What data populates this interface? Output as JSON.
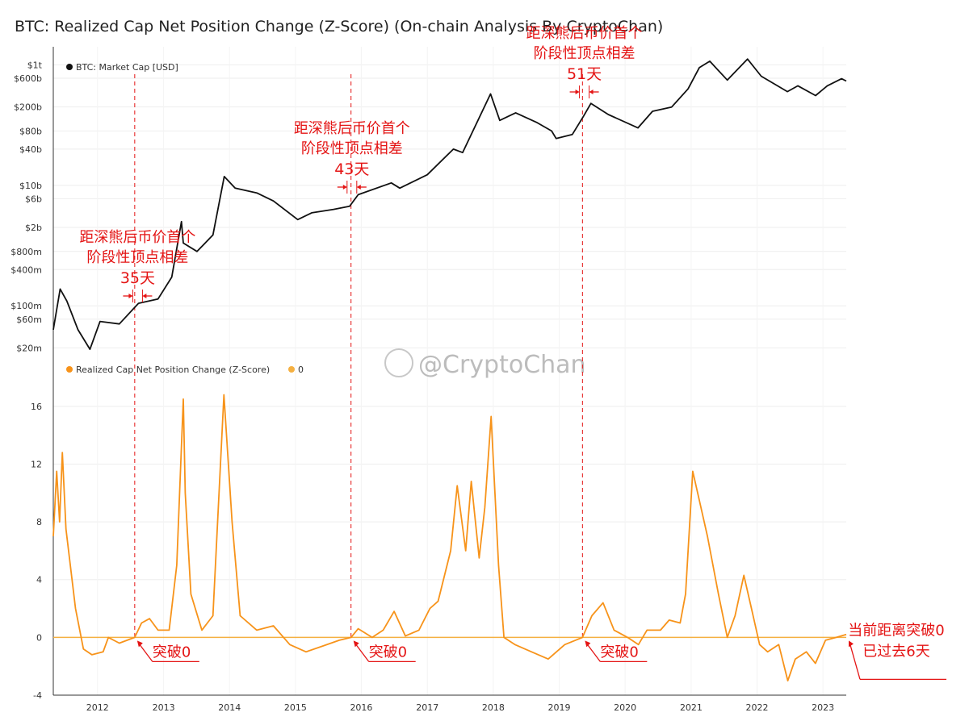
{
  "title": "BTC: Realized Cap Net Position Change (Z-Score) (On-chain Analysis By CryptoChan)",
  "watermark": "@CryptoChan",
  "colors": {
    "price_line": "#111111",
    "zscore_line": "#f7931a",
    "zero_line": "#f5b041",
    "annotation": "#e41414",
    "grid": "#eeeeee"
  },
  "chart_data": [
    {
      "type": "line",
      "scale": "log",
      "legend": "top-left",
      "y_ticks": [
        "$1t",
        "$600b",
        "$200b",
        "$80b",
        "$40b",
        "$10b",
        "$6b",
        "$2b",
        "$800m",
        "$400m",
        "$100m",
        "$60m",
        "$20m"
      ],
      "y_tick_values": [
        1000000000000,
        600000000000,
        200000000000,
        80000000000,
        40000000000,
        10000000000,
        6000000000,
        2000000000,
        800000000,
        400000000,
        100000000,
        60000000,
        20000000
      ],
      "series": [
        {
          "name": "BTC: Market Cap [USD]",
          "points": [
            [
              "2011-05-01",
              40000000
            ],
            [
              "2011-06-08",
              190000000
            ],
            [
              "2011-07-15",
              120000000
            ],
            [
              "2011-09-15",
              40000000
            ],
            [
              "2011-11-20",
              19000000
            ],
            [
              "2012-01-15",
              55000000
            ],
            [
              "2012-05-01",
              50000000
            ],
            [
              "2012-08-15",
              110000000
            ],
            [
              "2012-12-01",
              130000000
            ],
            [
              "2013-02-15",
              300000000
            ],
            [
              "2013-04-10",
              2500000000
            ],
            [
              "2013-04-20",
              1100000000
            ],
            [
              "2013-07-05",
              800000000
            ],
            [
              "2013-10-01",
              1500000000
            ],
            [
              "2013-12-03",
              14000000000
            ],
            [
              "2014-02-01",
              9000000000
            ],
            [
              "2014-06-01",
              7500000000
            ],
            [
              "2014-09-01",
              5500000000
            ],
            [
              "2015-01-14",
              2700000000
            ],
            [
              "2015-04-01",
              3500000000
            ],
            [
              "2015-08-01",
              4000000000
            ],
            [
              "2015-10-28",
              4500000000
            ],
            [
              "2015-12-15",
              7000000000
            ],
            [
              "2016-06-15",
              11000000000
            ],
            [
              "2016-08-01",
              9000000000
            ],
            [
              "2016-12-31",
              15000000000
            ],
            [
              "2017-05-25",
              40000000000
            ],
            [
              "2017-07-15",
              35000000000
            ],
            [
              "2017-12-17",
              330000000000
            ],
            [
              "2018-02-06",
              120000000000
            ],
            [
              "2018-05-05",
              160000000000
            ],
            [
              "2018-09-01",
              110000000000
            ],
            [
              "2018-11-20",
              80000000000
            ],
            [
              "2018-12-15",
              60000000000
            ],
            [
              "2019-03-15",
              70000000000
            ],
            [
              "2019-05-15",
              140000000000
            ],
            [
              "2019-06-26",
              230000000000
            ],
            [
              "2019-09-30",
              150000000000
            ],
            [
              "2020-03-12",
              90000000000
            ],
            [
              "2020-06-01",
              170000000000
            ],
            [
              "2020-09-15",
              200000000000
            ],
            [
              "2020-12-15",
              400000000000
            ],
            [
              "2021-02-15",
              900000000000
            ],
            [
              "2021-04-14",
              1150000000000
            ],
            [
              "2021-07-20",
              560000000000
            ],
            [
              "2021-11-09",
              1250000000000
            ],
            [
              "2022-01-24",
              650000000000
            ],
            [
              "2022-06-18",
              360000000000
            ],
            [
              "2022-08-15",
              450000000000
            ],
            [
              "2022-11-21",
              310000000000
            ],
            [
              "2023-01-25",
              450000000000
            ],
            [
              "2023-04-14",
              590000000000
            ],
            [
              "2023-05-10",
              540000000000
            ]
          ]
        }
      ]
    },
    {
      "type": "line",
      "legend": "top-left",
      "x_ticks": [
        "2012",
        "2013",
        "2014",
        "2015",
        "2016",
        "2017",
        "2018",
        "2019",
        "2020",
        "2021",
        "2022",
        "2023"
      ],
      "y_ticks": [
        "16",
        "12",
        "8",
        "4",
        "0",
        "-4"
      ],
      "ylim": [
        -4,
        16
      ],
      "series": [
        {
          "name": "Realized Cap Net Position Change (Z-Score)",
          "points": [
            [
              "2011-05-01",
              7.0
            ],
            [
              "2011-05-20",
              11.5
            ],
            [
              "2011-06-05",
              8.0
            ],
            [
              "2011-06-20",
              12.8
            ],
            [
              "2011-07-10",
              7.5
            ],
            [
              "2011-09-01",
              2.0
            ],
            [
              "2011-10-15",
              -0.8
            ],
            [
              "2011-12-01",
              -1.2
            ],
            [
              "2012-02-01",
              -1.0
            ],
            [
              "2012-03-01",
              0.0
            ],
            [
              "2012-05-01",
              -0.4
            ],
            [
              "2012-07-25",
              0.0
            ],
            [
              "2012-09-01",
              1.0
            ],
            [
              "2012-10-15",
              1.3
            ],
            [
              "2012-12-01",
              0.5
            ],
            [
              "2013-02-01",
              0.5
            ],
            [
              "2013-03-15",
              5.0
            ],
            [
              "2013-04-20",
              16.5
            ],
            [
              "2013-05-01",
              10.0
            ],
            [
              "2013-06-01",
              3.0
            ],
            [
              "2013-08-01",
              0.5
            ],
            [
              "2013-10-01",
              1.5
            ],
            [
              "2013-12-01",
              16.8
            ],
            [
              "2014-01-15",
              8.0
            ],
            [
              "2014-03-01",
              1.5
            ],
            [
              "2014-06-01",
              0.5
            ],
            [
              "2014-09-01",
              0.8
            ],
            [
              "2014-12-01",
              -0.5
            ],
            [
              "2015-03-01",
              -1.0
            ],
            [
              "2015-06-01",
              -0.6
            ],
            [
              "2015-09-01",
              -0.2
            ],
            [
              "2015-11-05",
              0.0
            ],
            [
              "2015-12-15",
              0.6
            ],
            [
              "2016-03-01",
              0.0
            ],
            [
              "2016-05-01",
              0.5
            ],
            [
              "2016-07-01",
              1.8
            ],
            [
              "2016-09-01",
              0.1
            ],
            [
              "2016-11-15",
              0.5
            ],
            [
              "2017-01-15",
              2.0
            ],
            [
              "2017-03-01",
              2.5
            ],
            [
              "2017-05-10",
              6.0
            ],
            [
              "2017-06-15",
              10.5
            ],
            [
              "2017-08-01",
              6.0
            ],
            [
              "2017-09-01",
              10.8
            ],
            [
              "2017-10-15",
              5.5
            ],
            [
              "2017-11-15",
              9.0
            ],
            [
              "2017-12-20",
              15.3
            ],
            [
              "2018-01-30",
              5.0
            ],
            [
              "2018-03-01",
              0.0
            ],
            [
              "2018-05-01",
              -0.5
            ],
            [
              "2018-08-01",
              -1.0
            ],
            [
              "2018-11-01",
              -1.5
            ],
            [
              "2019-02-01",
              -0.5
            ],
            [
              "2019-05-10",
              0.0
            ],
            [
              "2019-07-01",
              1.5
            ],
            [
              "2019-09-01",
              2.4
            ],
            [
              "2019-11-01",
              0.5
            ],
            [
              "2020-01-15",
              0.0
            ],
            [
              "2020-03-15",
              -0.5
            ],
            [
              "2020-05-01",
              0.5
            ],
            [
              "2020-07-15",
              0.5
            ],
            [
              "2020-09-01",
              1.2
            ],
            [
              "2020-11-01",
              1.0
            ],
            [
              "2020-12-01",
              3.0
            ],
            [
              "2021-01-10",
              11.5
            ],
            [
              "2021-02-15",
              9.5
            ],
            [
              "2021-04-01",
              7.0
            ],
            [
              "2021-06-01",
              3.0
            ],
            [
              "2021-07-20",
              0.0
            ],
            [
              "2021-09-01",
              1.5
            ],
            [
              "2021-10-20",
              4.3
            ],
            [
              "2021-12-01",
              2.0
            ],
            [
              "2022-01-15",
              -0.5
            ],
            [
              "2022-03-01",
              -1.0
            ],
            [
              "2022-05-01",
              -0.5
            ],
            [
              "2022-06-20",
              -3.0
            ],
            [
              "2022-08-01",
              -1.5
            ],
            [
              "2022-10-01",
              -1.0
            ],
            [
              "2022-11-20",
              -1.8
            ],
            [
              "2023-01-15",
              -0.2
            ],
            [
              "2023-03-15",
              0.0
            ],
            [
              "2023-05-10",
              0.2
            ]
          ]
        },
        {
          "name": "0",
          "points": [
            [
              "2011-05-01",
              0
            ],
            [
              "2023-05-10",
              0
            ]
          ]
        }
      ]
    }
  ],
  "annotations": {
    "gap_labels": [
      {
        "date": "2012-08-10",
        "line1": "距深熊后币价首个",
        "line2": "阶段性顶点相差",
        "days": "35天"
      },
      {
        "date": "2015-11-10",
        "line1": "距深熊后币价首个",
        "line2": "阶段性顶点相差",
        "days": "43天"
      },
      {
        "date": "2019-05-20",
        "line1": "距深熊后币价首个",
        "line2": "阶段性顶点相差",
        "days": "51天"
      }
    ],
    "breakthrough_labels": [
      {
        "date": "2012-07-25",
        "text": "突破0"
      },
      {
        "date": "2015-11-05",
        "text": "突破0"
      },
      {
        "date": "2019-05-10",
        "text": "突破0"
      }
    ],
    "current_note": {
      "line1": "当前距离突破0",
      "line2": "已过去6天"
    }
  }
}
